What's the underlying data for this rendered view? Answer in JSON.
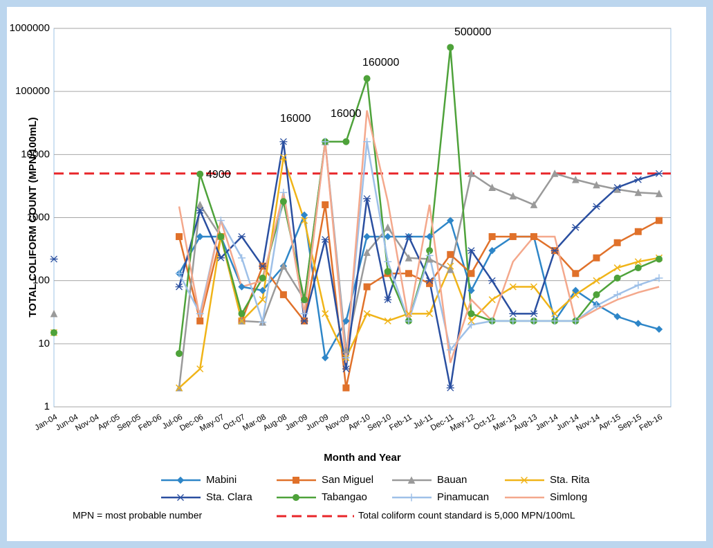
{
  "chart_data": {
    "type": "line",
    "y_label": "TOTAL COLIFORM COUNT (MPN/100mL)",
    "x_label": "Month and Year",
    "log_y": true,
    "grid": true,
    "ylim": [
      1,
      1000000
    ],
    "yticks": [
      1,
      10,
      100,
      1000,
      10000,
      100000,
      1000000
    ],
    "categories": [
      "Jan-04",
      "Jun-04",
      "Nov-04",
      "Apr-05",
      "Sep-05",
      "Feb-06",
      "Jul-06",
      "Dec-06",
      "May-07",
      "Oct-07",
      "Mar-08",
      "Aug-08",
      "Jan-09",
      "Jun-09",
      "Nov-09",
      "Apr-10",
      "Sep-10",
      "Feb-11",
      "Jul-11",
      "Dec-11",
      "May-12",
      "Oct-12",
      "Mar-13",
      "Aug-13",
      "Jan-14",
      "Jun-14",
      "Nov-14",
      "Apr-15",
      "Sep-15",
      "Feb-16"
    ],
    "series": [
      {
        "name": "Mabini",
        "color": "#2e86c8",
        "marker": "diamond",
        "values": [
          null,
          null,
          null,
          null,
          null,
          null,
          130,
          500,
          500,
          80,
          70,
          170,
          1100,
          6,
          23,
          500,
          500,
          500,
          500,
          900,
          70,
          300,
          500,
          500,
          23,
          70,
          42,
          27,
          21,
          17
        ]
      },
      {
        "name": "San Miguel",
        "color": "#e0712a",
        "marker": "square",
        "values": [
          null,
          null,
          null,
          null,
          null,
          null,
          500,
          23,
          500,
          23,
          170,
          60,
          23,
          1600,
          2,
          80,
          130,
          130,
          90,
          260,
          130,
          500,
          500,
          500,
          300,
          130,
          230,
          400,
          600,
          900
        ]
      },
      {
        "name": "Bauan",
        "color": "#9a9a9a",
        "marker": "triangle",
        "values": [
          30,
          null,
          null,
          null,
          null,
          null,
          2,
          1600,
          500,
          23,
          22,
          170,
          50,
          16000,
          8,
          280,
          700,
          230,
          220,
          150,
          5000,
          3000,
          2200,
          1600,
          5000,
          4000,
          3300,
          2800,
          2500,
          2400
        ]
      },
      {
        "name": "Sta. Rita",
        "color": "#f0b418",
        "marker": "x",
        "values": [
          15,
          null,
          null,
          null,
          null,
          null,
          2,
          4,
          500,
          23,
          50,
          9000,
          900,
          30,
          6,
          30,
          23,
          30,
          30,
          170,
          23,
          50,
          80,
          80,
          30,
          60,
          100,
          160,
          200,
          230
        ]
      },
      {
        "name": "Sta. Clara",
        "color": "#2a4fa0",
        "marker": "asterisk",
        "values": [
          220,
          null,
          null,
          null,
          null,
          null,
          80,
          1300,
          230,
          500,
          170,
          16000,
          23,
          450,
          4,
          2000,
          50,
          500,
          100,
          2,
          300,
          100,
          30,
          30,
          300,
          700,
          1500,
          3000,
          4000,
          5000
        ]
      },
      {
        "name": "Tabangao",
        "color": "#4ea23a",
        "marker": "circle",
        "values": [
          15,
          null,
          null,
          null,
          null,
          null,
          7,
          4900,
          500,
          30,
          110,
          1800,
          50,
          16000,
          16000,
          160000,
          140,
          23,
          300,
          500000,
          30,
          23,
          23,
          23,
          23,
          23,
          60,
          110,
          160,
          220
        ]
      },
      {
        "name": "Pinamucan",
        "color": "#9ec0e8",
        "marker": "plus",
        "values": [
          null,
          null,
          null,
          null,
          null,
          null,
          130,
          30,
          900,
          230,
          22,
          2500,
          30,
          16000,
          6,
          16000,
          200,
          23,
          250,
          8,
          20,
          23,
          23,
          23,
          23,
          23,
          40,
          60,
          85,
          110
        ]
      },
      {
        "name": "Simlong",
        "color": "#f4a88c",
        "marker": "none",
        "values": [
          null,
          null,
          null,
          null,
          null,
          null,
          1500,
          25,
          900,
          80,
          100,
          2500,
          30,
          16000,
          5,
          50000,
          1800,
          23,
          1600,
          5,
          50,
          23,
          200,
          500,
          500,
          23,
          35,
          50,
          65,
          80
        ]
      }
    ],
    "annotations": [
      "4900",
      "16000",
      "16000",
      "160000",
      "500000"
    ],
    "standard": {
      "value": 5000,
      "color": "#e8262a",
      "label": "Total coliform count standard is 5,000 MPN/100mL"
    },
    "footnote": "MPN = most probable number"
  }
}
